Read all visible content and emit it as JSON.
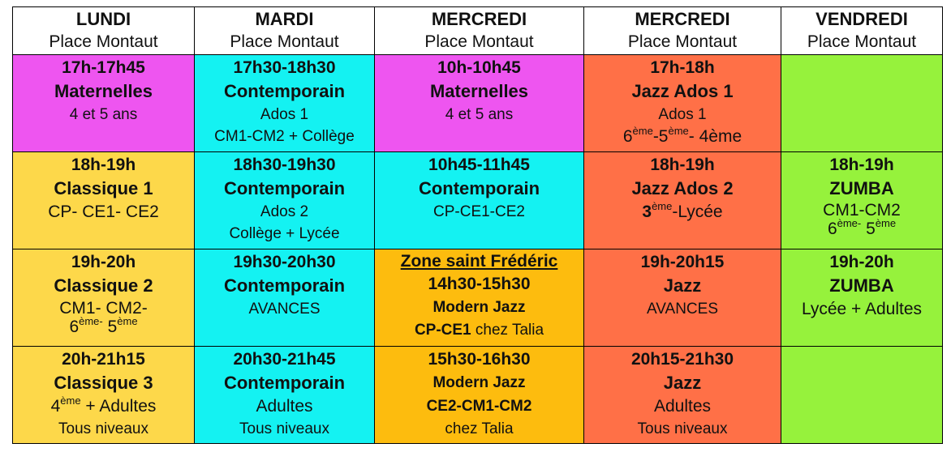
{
  "colors": {
    "magenta": "#ee55f0",
    "cyan": "#14f2f2",
    "orange_red": "#ff7047",
    "green": "#96f23c",
    "yellow": "#fdd84a",
    "amber": "#fdbc0e"
  },
  "headers": [
    {
      "day": "LUNDI",
      "place": "Place Montaut"
    },
    {
      "day": "MARDI",
      "place": "Place Montaut"
    },
    {
      "day": "MERCREDI",
      "place": "Place Montaut"
    },
    {
      "day": "MERCREDI",
      "place": "Place Montaut"
    },
    {
      "day": "VENDREDI",
      "place": "Place Montaut"
    }
  ],
  "rows": [
    [
      {
        "time": "17h-17h45",
        "name": "Maternelles",
        "sub": "4 et 5 ans"
      },
      {
        "time": "17h30-18h30",
        "name": "Contemporain",
        "sub": "Ados 1",
        "sub2": "CM1-CM2 + Collège"
      },
      {
        "time": "10h-10h45",
        "name": "Maternelles",
        "sub": "4 et 5 ans"
      },
      {
        "time": "17h-18h",
        "name": "Jazz Ados 1",
        "sub": "Ados 1",
        "grade_a": "6",
        "grade_a_sup": "ème",
        "grade_b": "-5",
        "grade_b_sup": "ème",
        "grade_c": "- 4ème"
      },
      {}
    ],
    [
      {
        "time": "18h-19h",
        "name": "Classique 1",
        "sub": "CP- CE1- CE2"
      },
      {
        "time": "18h30-19h30",
        "name": "Contemporain",
        "sub": "Ados 2",
        "sub2": "Collège + Lycée"
      },
      {
        "time": "10h45-11h45",
        "name": "Contemporain",
        "sub": "CP-CE1-CE2"
      },
      {
        "time": "18h-19h",
        "name": "Jazz Ados 2",
        "grade_a": "3",
        "grade_a_sup": "ème",
        "grade_b": "-Lycée"
      },
      {
        "time": "18h-19h",
        "name": "ZUMBA",
        "sub": "CM1-CM2",
        "grade_a": "6",
        "grade_a_sup": "ème-",
        "grade_b": " 5",
        "grade_b_sup": "ème"
      }
    ],
    [
      {
        "time": "19h-20h",
        "name": "Classique 2",
        "sub": "CM1- CM2-",
        "grade_a": "6",
        "grade_a_sup": "ème-",
        "grade_b": " 5",
        "grade_b_sup": "ème"
      },
      {
        "time": "19h30-20h30",
        "name": "Contemporain",
        "sub": "AVANCES"
      },
      {
        "zone": "Zone saint Frédéric",
        "time": "14h30-15h30",
        "name": "Modern  Jazz",
        "level_bold": "CP-CE1",
        "level_rest": " chez Talia"
      },
      {
        "time": "19h-20h15",
        "name": "Jazz",
        "sub": "AVANCES"
      },
      {
        "time": "19h-20h",
        "name": "ZUMBA",
        "sub": "Lycée +  Adultes"
      }
    ],
    [
      {
        "time": "20h-21h15",
        "name": "Classique 3",
        "grade_a": "4",
        "grade_a_sup": "ème",
        "grade_b": " + Adultes",
        "sub2": "Tous niveaux"
      },
      {
        "time": "20h30-21h45",
        "name": "Contemporain",
        "sub": "Adultes",
        "sub2": "Tous niveaux"
      },
      {
        "time": "15h30-16h30",
        "name": "Modern  Jazz",
        "level_bold": "CE2-CM1-CM2",
        "sub2": "chez Talia"
      },
      {
        "time": "20h15-21h30",
        "name": "Jazz",
        "sub": "Adultes",
        "sub2": "Tous niveaux"
      },
      {}
    ]
  ]
}
